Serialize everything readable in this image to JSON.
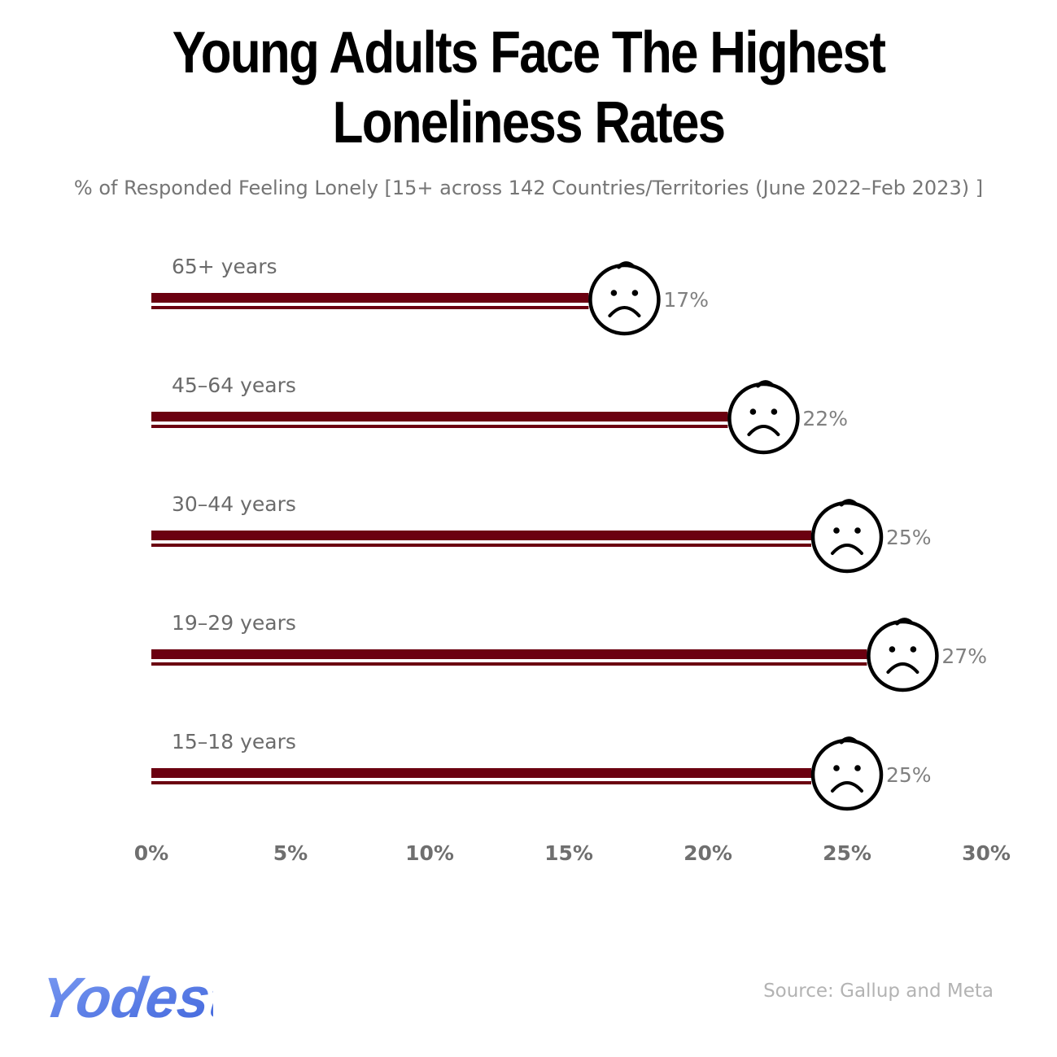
{
  "chart_data": {
    "type": "bar",
    "orientation": "horizontal",
    "title": "Young Adults Face The Highest Loneliness Rates",
    "subtitle": "% of Responded Feeling Lonely [15+ across 142 Countries/Territories (June 2022–Feb 2023) ]",
    "categories": [
      "65+ years",
      "45–64 years",
      "30–44 years",
      "19–29 years",
      "15–18 years"
    ],
    "values": [
      17,
      22,
      25,
      27,
      25
    ],
    "value_labels": [
      "17%",
      "22%",
      "25%",
      "27%",
      "25%"
    ],
    "xlim": [
      0,
      30
    ],
    "x_ticks": [
      0,
      5,
      10,
      15,
      20,
      25,
      30
    ],
    "x_tick_labels": [
      "0%",
      "5%",
      "10%",
      "15%",
      "20%",
      "25%",
      "30%"
    ],
    "grid": false,
    "legend": "none",
    "bar_color": "#6b0010",
    "marker_icon": "sad-face-icon"
  },
  "footer": {
    "brand": "Yodest",
    "source": "Source: Gallup and Meta",
    "brand_color": "#5b7fe6"
  }
}
